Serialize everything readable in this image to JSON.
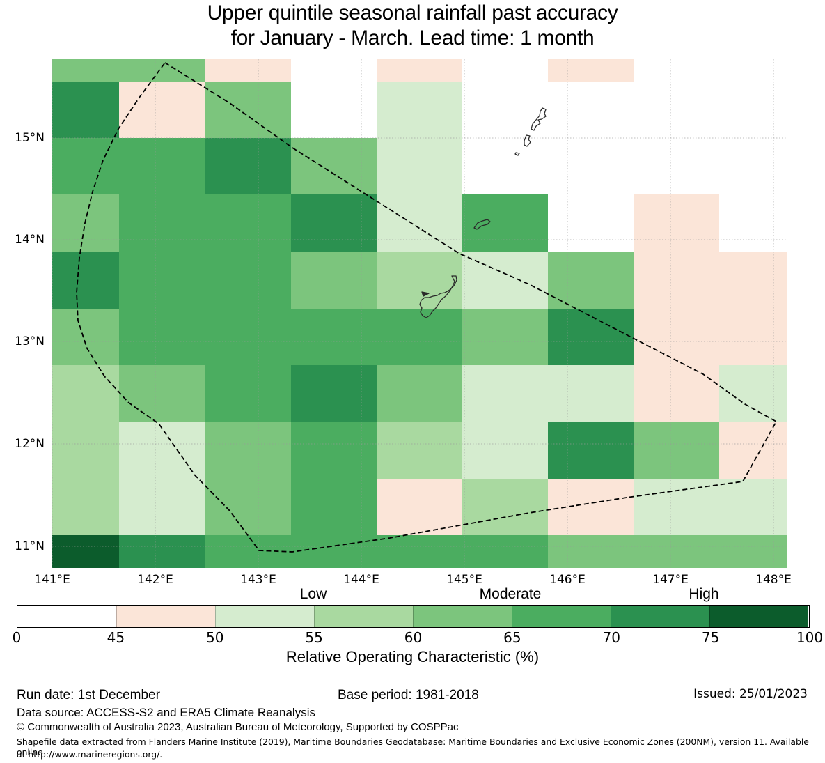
{
  "title": {
    "line1": "Upper quintile seasonal rainfall past accuracy",
    "line2": "for January - March. Lead time: 1 month"
  },
  "chart_data": {
    "type": "heatmap",
    "x_tick_labels": [
      "141°E",
      "142°E",
      "143°E",
      "144°E",
      "145°E",
      "146°E",
      "147°E",
      "148°E"
    ],
    "y_tick_labels": [
      "15°N",
      "14°N",
      "13°N",
      "12°N",
      "11°N"
    ],
    "value_name": "Relative Operating Characteristic (%)",
    "bin_edges": [
      0,
      45,
      50,
      55,
      60,
      65,
      70,
      75,
      100
    ],
    "bin_colors": [
      "#ffffff",
      "#fbe5d8",
      "#d5eccf",
      "#a9d9a0",
      "#7cc57d",
      "#4bad60",
      "#2b9150",
      "#0c5c2c"
    ],
    "category_bands": [
      {
        "label": "Low",
        "range": [
          50,
          60
        ]
      },
      {
        "label": "Moderate",
        "range": [
          60,
          70
        ]
      },
      {
        "label": "High",
        "range": [
          70,
          100
        ]
      }
    ],
    "grid_note": "bin index per cell, 10 rows (north to south) x 9 columns (west to east)",
    "grid": [
      [
        4,
        4,
        1,
        0,
        1,
        0,
        1,
        0,
        0
      ],
      [
        6,
        1,
        4,
        0,
        2,
        0,
        0,
        0,
        0
      ],
      [
        5,
        5,
        6,
        4,
        2,
        0,
        0,
        0,
        0
      ],
      [
        4,
        5,
        5,
        6,
        2,
        5,
        0,
        1,
        0
      ],
      [
        6,
        5,
        5,
        4,
        3,
        2,
        4,
        1,
        1
      ],
      [
        4,
        5,
        5,
        5,
        5,
        4,
        6,
        1,
        1
      ],
      [
        3,
        4,
        5,
        6,
        4,
        2,
        2,
        1,
        2
      ],
      [
        3,
        2,
        4,
        5,
        3,
        2,
        6,
        4,
        1
      ],
      [
        3,
        2,
        4,
        5,
        1,
        3,
        1,
        2,
        2
      ],
      [
        7,
        6,
        5,
        5,
        5,
        5,
        4,
        4,
        4
      ]
    ],
    "map_features": {
      "islands": [
        "Saipan",
        "Tinian",
        "Aguijan",
        "Rota",
        "Guam"
      ],
      "boundary": "EEZ dashed boundary"
    }
  },
  "colorbar": {
    "tick_labels": [
      "0",
      "45",
      "50",
      "55",
      "60",
      "65",
      "70",
      "75",
      "100"
    ],
    "category_labels": [
      "Low",
      "Moderate",
      "High"
    ],
    "axis_label": "Relative Operating Characteristic (%)"
  },
  "footer": {
    "run_date": "Run date: 1st December",
    "base_period": "Base period: 1981-2018",
    "issued": "Issued: 25/01/2023",
    "data_source": "Data source: ACCESS-S2 and ERA5 Climate Reanalysis",
    "copyright": "© Commonwealth of Australia 2023, Australian Bureau of Meteorology, Supported by COSPPac",
    "shapefile_line1": "Shapefile data extracted from Flanders Marine Institute (2019), Maritime Boundaries Geodatabase: Maritime Boundaries and Exclusive Economic Zones (200NM), version 11. Available online",
    "shapefile_line2": "at http://www.marineregions.org/."
  }
}
